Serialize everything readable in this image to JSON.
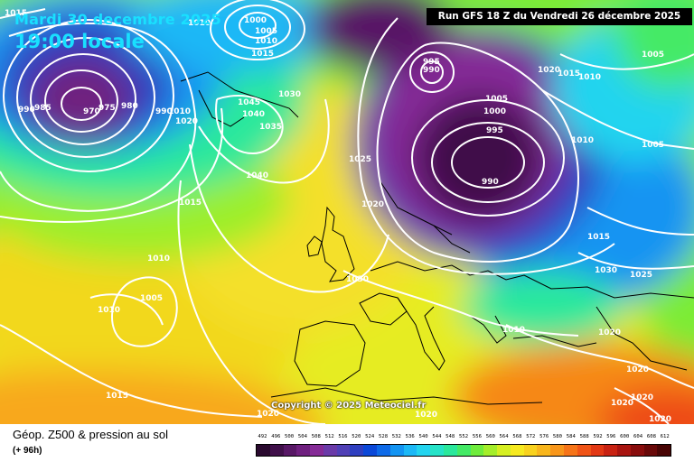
{
  "header": {
    "date": "Mardi 30 decembre 2025",
    "time": "19:00 locale",
    "run": "Run GFS 18 Z du Vendredi 26 décembre 2025"
  },
  "copyright": "Copyright © 2025 Meteociel.fr",
  "footer": {
    "title": "Géop. Z500 & pression au sol",
    "subtitle": "(+ 96h)"
  },
  "legend": {
    "ticks": [
      "492",
      "496",
      "500",
      "504",
      "508",
      "512",
      "516",
      "520",
      "524",
      "528",
      "532",
      "536",
      "540",
      "544",
      "548",
      "552",
      "556",
      "560",
      "564",
      "568",
      "572",
      "576",
      "580",
      "584",
      "588",
      "592",
      "596",
      "600",
      "604",
      "608",
      "612"
    ],
    "colors": [
      "#2a0a2f",
      "#40104a",
      "#581866",
      "#6f207f",
      "#852b97",
      "#6a3aa8",
      "#5040b6",
      "#2f3fc0",
      "#0b48d8",
      "#0e6ae8",
      "#1394f2",
      "#1cb8f6",
      "#23d4ef",
      "#26e3c8",
      "#2ae89c",
      "#44ea66",
      "#6fec3c",
      "#a4ee2a",
      "#d6ef22",
      "#f6ea20",
      "#f8d21e",
      "#f8b61c",
      "#f8961a",
      "#f67418",
      "#f05416",
      "#e23814",
      "#c82212",
      "#a81410",
      "#880c0c",
      "#680808",
      "#480404"
    ]
  },
  "isobars": {
    "labels": [
      "1015",
      "1010",
      "1000",
      "1005",
      "1010",
      "1015",
      "1045",
      "1040",
      "1035",
      "1030",
      "990",
      "985",
      "970",
      "975",
      "980",
      "990",
      "1010",
      "1020",
      "1040",
      "1015",
      "1010",
      "1005",
      "1010",
      "1015",
      "1030",
      "1020",
      "995",
      "990",
      "1005",
      "1000",
      "995",
      "990",
      "1025",
      "1020",
      "1015",
      "1010",
      "1005",
      "1010",
      "1005",
      "1015",
      "1030",
      "1025",
      "1010",
      "1020",
      "1020",
      "1020",
      "1020",
      "1020",
      "1020",
      "1020"
    ]
  },
  "colors": {
    "isobar": "#ffffff",
    "coast": "#000000",
    "header_text": "#19e0ff",
    "run_box": "#000000"
  }
}
